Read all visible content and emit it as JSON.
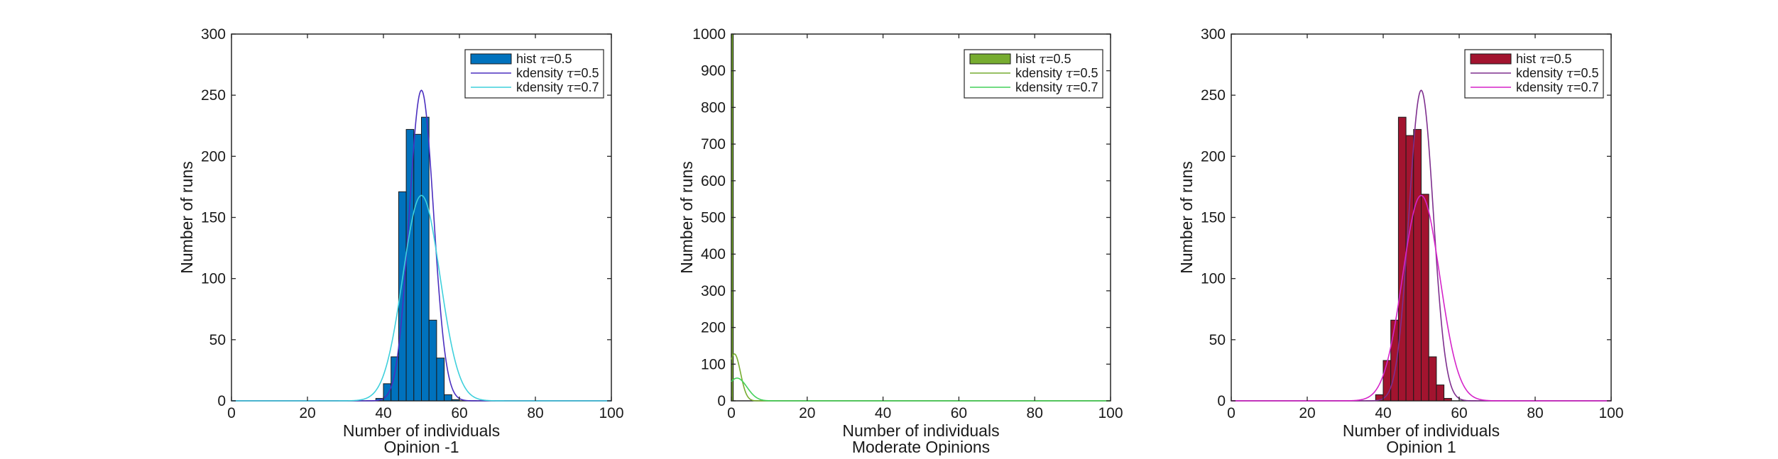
{
  "chart_data": [
    {
      "type": "bar",
      "bar_color": "#0072BD",
      "kde_colors": [
        "#4B2FBF",
        "#3FD0DC"
      ],
      "xlabel": "Number of individuals",
      "subtitle": "Opinion -1",
      "ylabel": "Number of runs",
      "xlim": [
        0,
        100
      ],
      "ylim": [
        0,
        300
      ],
      "xticks": [
        0,
        20,
        40,
        60,
        80,
        100
      ],
      "yticks": [
        0,
        50,
        100,
        150,
        200,
        250,
        300
      ],
      "legend": [
        {
          "kind": "patch",
          "prefix": "hist ",
          "greek": "τ",
          "suffix": "=0.5"
        },
        {
          "kind": "line",
          "prefix": "kdensity ",
          "greek": "τ",
          "suffix": "=0.5"
        },
        {
          "kind": "line",
          "prefix": "kdensity ",
          "greek": "τ",
          "suffix": "=0.7"
        }
      ],
      "hist": {
        "edges": [
          38,
          40,
          42,
          44,
          46,
          48,
          50,
          52,
          54,
          56,
          58,
          60,
          62
        ],
        "values": [
          2,
          14,
          36,
          171,
          222,
          218,
          232,
          66,
          35,
          5,
          1,
          0
        ]
      },
      "kde": [
        {
          "name": "kdensity τ=0.5",
          "mean": 50,
          "sd": 3.2,
          "peak": 254
        },
        {
          "name": "kdensity τ=0.7",
          "mean": 50,
          "sd": 4.9,
          "peak": 168
        }
      ]
    },
    {
      "type": "bar",
      "bar_color": "#77AC30",
      "kde_colors": [
        "#77AC30",
        "#43D15A"
      ],
      "xlabel": "Number of individuals",
      "subtitle": "Moderate Opinions",
      "ylabel": "Number of runs",
      "xlim": [
        0,
        100
      ],
      "ylim": [
        0,
        1000
      ],
      "xticks": [
        0,
        20,
        40,
        60,
        80,
        100
      ],
      "yticks": [
        0,
        100,
        200,
        300,
        400,
        500,
        600,
        700,
        800,
        900,
        1000
      ],
      "legend": [
        {
          "kind": "patch",
          "prefix": "hist ",
          "greek": "τ",
          "suffix": "=0.5"
        },
        {
          "kind": "line",
          "prefix": "kdensity ",
          "greek": "τ",
          "suffix": "=0.5"
        },
        {
          "kind": "line",
          "prefix": "kdensity ",
          "greek": "τ",
          "suffix": "=0.7"
        }
      ],
      "hist": {
        "edges": [
          0,
          0.5,
          1,
          1.5
        ],
        "values": [
          1000,
          0,
          0
        ]
      },
      "kde": [
        {
          "name": "kdensity τ=0.5",
          "mean": 0.8,
          "sd": 1.6,
          "peak": 128
        },
        {
          "name": "kdensity τ=0.7",
          "mean": 1.5,
          "sd": 2.6,
          "peak": 62
        }
      ]
    },
    {
      "type": "bar",
      "bar_color": "#A2142F",
      "kde_colors": [
        "#7E2F8E",
        "#D524C9"
      ],
      "xlabel": "Number of individuals",
      "subtitle": "Opinion 1",
      "ylabel": "Number of runs",
      "xlim": [
        0,
        100
      ],
      "ylim": [
        0,
        300
      ],
      "xticks": [
        0,
        20,
        40,
        60,
        80,
        100
      ],
      "yticks": [
        0,
        50,
        100,
        150,
        200,
        250,
        300
      ],
      "legend": [
        {
          "kind": "patch",
          "prefix": "hist ",
          "greek": "τ",
          "suffix": "=0.5"
        },
        {
          "kind": "line",
          "prefix": "kdensity ",
          "greek": "τ",
          "suffix": "=0.5"
        },
        {
          "kind": "line",
          "prefix": "kdensity ",
          "greek": "τ",
          "suffix": "=0.7"
        }
      ],
      "hist": {
        "edges": [
          38,
          40,
          42,
          44,
          46,
          48,
          50,
          52,
          54,
          56,
          58,
          60,
          62
        ],
        "values": [
          5,
          33,
          66,
          232,
          217,
          222,
          169,
          36,
          13,
          2,
          0,
          0
        ]
      },
      "kde": [
        {
          "name": "kdensity τ=0.5",
          "mean": 50,
          "sd": 3.2,
          "peak": 254
        },
        {
          "name": "kdensity τ=0.7",
          "mean": 50,
          "sd": 4.9,
          "peak": 168
        }
      ]
    }
  ]
}
